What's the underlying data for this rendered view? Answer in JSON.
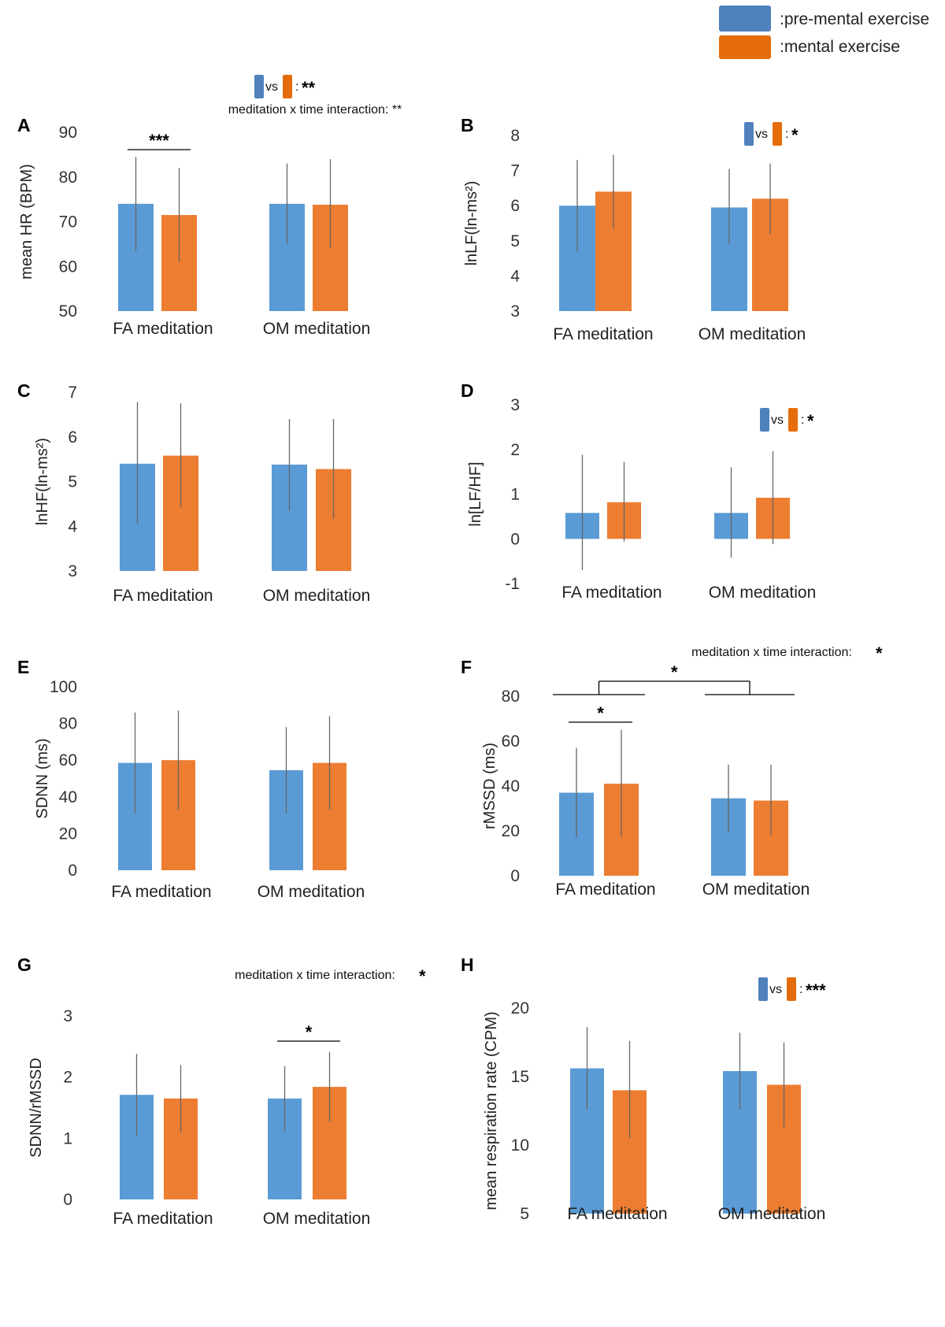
{
  "legend": {
    "pre_label": ":pre-mental exercise",
    "post_label": ":mental exercise",
    "pre_color": "#5b9bd5",
    "post_color": "#ed7d31",
    "legend_pre_color": "#4f81bd",
    "legend_post_color": "#e46c0a"
  },
  "chart_data": [
    {
      "panel": "A",
      "type": "bar",
      "categories": [
        "FA  meditation",
        "OM meditation"
      ],
      "series": [
        {
          "name": "pre-mental exercise",
          "values": [
            74,
            74
          ],
          "err_lo": [
            63.5,
            65
          ],
          "err_hi": [
            84.5,
            83
          ]
        },
        {
          "name": "mental exercise",
          "values": [
            71.5,
            73.8
          ],
          "err_lo": [
            61,
            64
          ],
          "err_hi": [
            82,
            84
          ]
        }
      ],
      "ylabel": "mean HR  (BPM)",
      "ylim": [
        50,
        90
      ],
      "yticks": [
        90,
        80,
        70,
        60,
        50
      ],
      "main_effect": "vs : **",
      "interaction": "meditation x time interaction: **",
      "pair_annotations": [
        {
          "category": 0,
          "label": "***"
        }
      ]
    },
    {
      "panel": "B",
      "type": "bar",
      "categories": [
        "FA  meditation",
        "OM meditation"
      ],
      "series": [
        {
          "name": "pre-mental exercise",
          "values": [
            6.0,
            5.95
          ],
          "err_lo": [
            4.7,
            4.9
          ],
          "err_hi": [
            7.3,
            7.05
          ]
        },
        {
          "name": "mental exercise",
          "values": [
            6.4,
            6.2
          ],
          "err_lo": [
            5.35,
            5.2
          ],
          "err_hi": [
            7.45,
            7.2
          ]
        }
      ],
      "ylabel": "lnLF(ln-ms²)",
      "ylim": [
        3,
        8
      ],
      "yticks": [
        8,
        7,
        6,
        5,
        4,
        3
      ],
      "main_effect": "vs : *"
    },
    {
      "panel": "C",
      "type": "bar",
      "categories": [
        "FA  meditation",
        "OM meditation"
      ],
      "series": [
        {
          "name": "pre-mental exercise",
          "values": [
            5.4,
            5.38
          ],
          "err_lo": [
            4.05,
            4.35
          ],
          "err_hi": [
            6.78,
            6.4
          ]
        },
        {
          "name": "mental exercise",
          "values": [
            5.58,
            5.28
          ],
          "err_lo": [
            4.42,
            4.17
          ],
          "err_hi": [
            6.75,
            6.4
          ]
        }
      ],
      "ylabel": "lnHF(ln-ms²)",
      "ylim": [
        3,
        7
      ],
      "yticks": [
        7,
        6,
        5,
        4,
        3
      ]
    },
    {
      "panel": "D",
      "type": "bar",
      "categories": [
        "FA  meditation",
        "OM meditation"
      ],
      "series": [
        {
          "name": "pre-mental exercise",
          "values": [
            0.58,
            0.58
          ],
          "err_lo": [
            -0.7,
            -0.42
          ],
          "err_hi": [
            1.88,
            1.6
          ]
        },
        {
          "name": "mental exercise",
          "values": [
            0.82,
            0.92
          ],
          "err_lo": [
            -0.06,
            -0.12
          ],
          "err_hi": [
            1.72,
            1.96
          ]
        }
      ],
      "ylabel": "ln[LF/HF]",
      "ylim": [
        -1,
        3
      ],
      "yticks": [
        3,
        2,
        1,
        0,
        -1
      ],
      "main_effect": "vs : *"
    },
    {
      "panel": "E",
      "type": "bar",
      "categories": [
        "FA  meditation",
        "OM meditation"
      ],
      "series": [
        {
          "name": "pre-mental exercise",
          "values": [
            58.5,
            54.5
          ],
          "err_lo": [
            31,
            31
          ],
          "err_hi": [
            86,
            78
          ]
        },
        {
          "name": "mental exercise",
          "values": [
            60,
            58.5
          ],
          "err_lo": [
            33,
            33
          ],
          "err_hi": [
            87,
            84
          ]
        }
      ],
      "ylabel": "SDNN (ms)",
      "ylim": [
        0,
        100
      ],
      "yticks": [
        100,
        80,
        60,
        40,
        20,
        0
      ]
    },
    {
      "panel": "F",
      "type": "bar",
      "categories": [
        "FA  meditation",
        "OM meditation"
      ],
      "series": [
        {
          "name": "pre-mental exercise",
          "values": [
            37,
            34.5
          ],
          "err_lo": [
            17,
            19.5
          ],
          "err_hi": [
            57,
            49.5
          ]
        },
        {
          "name": "mental exercise",
          "values": [
            41,
            33.5
          ],
          "err_lo": [
            17.5,
            18
          ],
          "err_hi": [
            65,
            49.5
          ]
        }
      ],
      "ylabel": "rMSSD (ms)",
      "ylim": [
        0,
        80
      ],
      "yticks": [
        80,
        60,
        40,
        20,
        0
      ],
      "interaction": "meditation x time interaction:",
      "interaction_star": "*",
      "pair_annotations": [
        {
          "category": 0,
          "label": "*"
        }
      ],
      "group_annotation": "*"
    },
    {
      "panel": "G",
      "type": "bar",
      "categories": [
        "FA  meditation",
        "OM meditation"
      ],
      "series": [
        {
          "name": "pre-mental exercise",
          "values": [
            1.71,
            1.65
          ],
          "err_lo": [
            1.04,
            1.12
          ],
          "err_hi": [
            2.38,
            2.18
          ]
        },
        {
          "name": "mental exercise",
          "values": [
            1.65,
            1.84
          ],
          "err_lo": [
            1.1,
            1.27
          ],
          "err_hi": [
            2.2,
            2.41
          ]
        }
      ],
      "ylabel": "SDNN/rMSSD",
      "ylim": [
        0,
        3
      ],
      "yticks": [
        3,
        2,
        1,
        0
      ],
      "interaction": "meditation x time interaction:",
      "interaction_star": "*",
      "pair_annotations": [
        {
          "category": 1,
          "label": "*"
        }
      ]
    },
    {
      "panel": "H",
      "type": "bar",
      "categories": [
        "FA  meditation",
        "OM meditation"
      ],
      "series": [
        {
          "name": "pre-mental exercise",
          "values": [
            15.6,
            15.4
          ],
          "err_lo": [
            12.6,
            12.6
          ],
          "err_hi": [
            18.6,
            18.2
          ]
        },
        {
          "name": "mental exercise",
          "values": [
            14.0,
            14.4
          ],
          "err_lo": [
            10.5,
            11.3
          ],
          "err_hi": [
            17.6,
            17.5
          ]
        }
      ],
      "ylabel": "mean respiration rate  (CPM)",
      "ylim": [
        5,
        20
      ],
      "yticks": [
        20,
        15,
        10,
        5
      ],
      "main_effect": "vs : ***"
    }
  ]
}
